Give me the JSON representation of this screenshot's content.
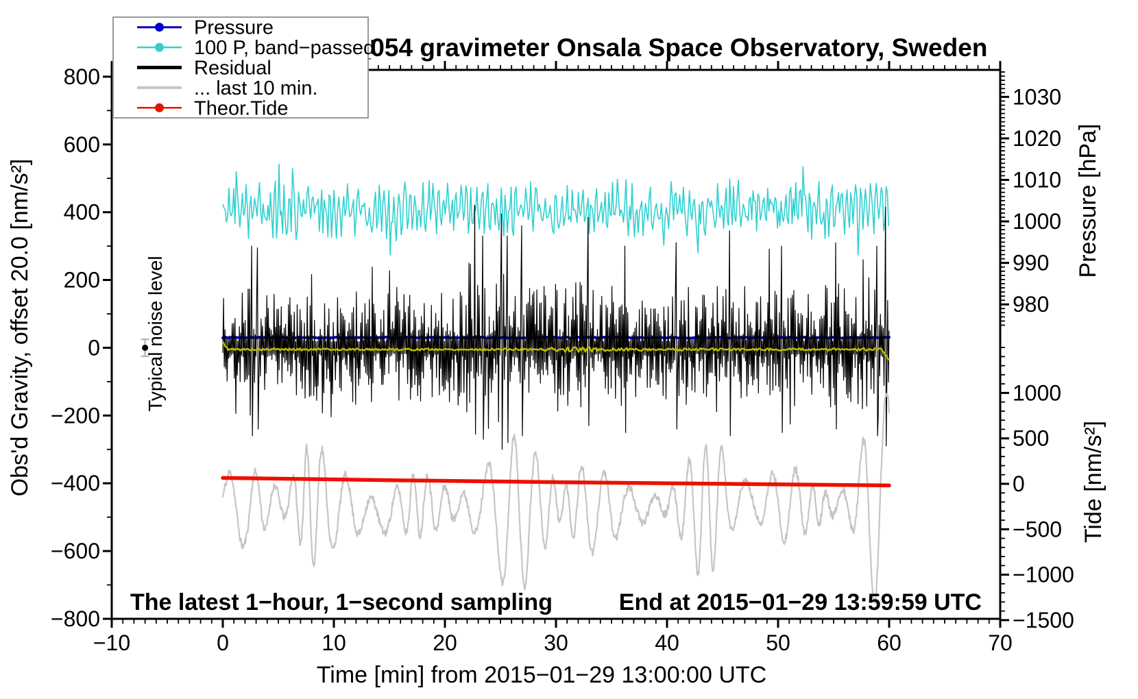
{
  "title": "SCG_054 gravimeter Onsala Space Observatory, Sweden",
  "legend": {
    "items": [
      {
        "label": "Pressure",
        "color": "#0000cc",
        "width": 3,
        "marker": true
      },
      {
        "label": "100 P, band−passed",
        "color": "#30d0d0",
        "width": 2.5,
        "marker": true
      },
      {
        "label": "Residual",
        "color": "#000000",
        "width": 5,
        "marker": false
      },
      {
        "label": "... last 10 min.",
        "color": "#c5c5c5",
        "width": 4,
        "marker": false
      },
      {
        "label": "Theor.Tide",
        "color": "#ec1000",
        "width": 2.5,
        "marker": true
      }
    ]
  },
  "chart_data": {
    "type": "line",
    "title": "SCG_054 gravimeter Onsala Space Observatory, Sweden",
    "xlabel": "Time [min] from 2015−01−29 13:00:00 UTC",
    "x_axis": {
      "range": [
        -10,
        70
      ],
      "major_step": 10,
      "minor_step": 1,
      "tick_labels": [
        -10,
        0,
        10,
        20,
        30,
        40,
        50,
        60,
        70
      ]
    },
    "gravity_axis": {
      "label": "Obs'd Gravity, offset 20.0 [nm/s²]",
      "range": [
        -800,
        820
      ],
      "major_step": 200,
      "minor_step": 100,
      "tick_labels": [
        800,
        600,
        400,
        200,
        0,
        -200,
        -400,
        -600,
        -800
      ]
    },
    "pressure_axis": {
      "label": "Pressure [hPa]",
      "range": [
        975,
        1036.5
      ],
      "minor_step": 1,
      "tick_labels": [
        1030,
        1020,
        1010,
        1000,
        990,
        980
      ]
    },
    "tide_axis": {
      "label": "Tide [nm/s²]",
      "range": [
        -1500,
        1500
      ],
      "minor_step": 100,
      "tick_labels": [
        1000,
        500,
        0,
        -500,
        -1000,
        -1500
      ]
    },
    "annotations": {
      "sampling": "The latest 1−hour, 1−second sampling",
      "end": "End at 2015−01−29 13:59:59 UTC"
    },
    "noise_marker": {
      "t": -7,
      "value": 0,
      "error": 25,
      "label": "Typical noise level"
    },
    "series": [
      {
        "name": "Pressure",
        "type": "flat",
        "axis": "pressure",
        "color": "#0000cc",
        "value": 972,
        "jitter": 0.25,
        "width": 4,
        "step": 0.25,
        "t": [
          0,
          60
        ]
      },
      {
        "name": "100 P, band−passed",
        "type": "band",
        "color": "#30d0d0",
        "center": 405,
        "width": 1.6,
        "step": 0.11,
        "t": [
          0,
          60
        ],
        "env_keys": [
          [
            0,
            75
          ],
          [
            3,
            85
          ],
          [
            5,
            95
          ],
          [
            7,
            80
          ],
          [
            10,
            85
          ],
          [
            13,
            75
          ],
          [
            15,
            90
          ],
          [
            17,
            95
          ],
          [
            20,
            80
          ],
          [
            23,
            85
          ],
          [
            25,
            100
          ],
          [
            27,
            85
          ],
          [
            30,
            70
          ],
          [
            33,
            75
          ],
          [
            36,
            95
          ],
          [
            38,
            80
          ],
          [
            40,
            110
          ],
          [
            42,
            85
          ],
          [
            45,
            90
          ],
          [
            48,
            95
          ],
          [
            50,
            85
          ],
          [
            52,
            90
          ],
          [
            55,
            85
          ],
          [
            57,
            90
          ],
          [
            60,
            95
          ]
        ]
      },
      {
        "name": "Residual",
        "type": "residual",
        "color": "#000000",
        "width": 1.2,
        "step": 0.065,
        "t": [
          0,
          60
        ],
        "env_keys": [
          [
            0,
            150
          ],
          [
            2,
            190
          ],
          [
            3,
            170
          ],
          [
            5,
            160
          ],
          [
            8,
            175
          ],
          [
            10,
            165
          ],
          [
            12,
            180
          ],
          [
            14,
            170
          ],
          [
            16,
            185
          ],
          [
            18,
            170
          ],
          [
            20,
            180
          ],
          [
            22,
            210
          ],
          [
            23,
            230
          ],
          [
            24,
            220
          ],
          [
            25,
            240
          ],
          [
            26,
            230
          ],
          [
            27,
            210
          ],
          [
            28,
            190
          ],
          [
            30,
            200
          ],
          [
            31,
            210
          ],
          [
            32,
            200
          ],
          [
            34,
            185
          ],
          [
            36,
            195
          ],
          [
            38,
            185
          ],
          [
            40,
            190
          ],
          [
            42,
            180
          ],
          [
            44,
            190
          ],
          [
            45,
            200
          ],
          [
            46,
            190
          ],
          [
            48,
            185
          ],
          [
            50,
            195
          ],
          [
            52,
            185
          ],
          [
            54,
            190
          ],
          [
            56,
            195
          ],
          [
            58,
            210
          ],
          [
            59,
            230
          ],
          [
            60,
            240
          ]
        ],
        "spikes": [
          [
            2.6,
            300,
            -260
          ],
          [
            3.1,
            295,
            -240
          ],
          [
            22.7,
            420,
            -255
          ],
          [
            23.4,
            330,
            -270
          ],
          [
            25.1,
            395,
            -300
          ],
          [
            25.6,
            330,
            -280
          ],
          [
            26.9,
            360,
            -260
          ],
          [
            32.9,
            385,
            -230
          ],
          [
            36.2,
            300,
            -250
          ],
          [
            40.8,
            310,
            -240
          ],
          [
            45.6,
            345,
            -260
          ],
          [
            50.3,
            300,
            -250
          ],
          [
            55.2,
            310,
            -240
          ],
          [
            58.9,
            300,
            -260
          ],
          [
            59.7,
            415,
            -290
          ]
        ]
      },
      {
        "name": "Residual last 10 min",
        "type": "swell",
        "color": "#c5c5c5",
        "width": 2.2,
        "step": 0.05,
        "t": [
          0,
          60
        ],
        "period": 1.9,
        "keys": [
          [
            0,
            -455,
            120
          ],
          [
            0.4,
            -520,
            150
          ],
          [
            2,
            -470,
            120
          ],
          [
            4,
            -460,
            170
          ],
          [
            6,
            -450,
            200
          ],
          [
            8,
            -460,
            190
          ],
          [
            10,
            -470,
            150
          ],
          [
            12,
            -480,
            190
          ],
          [
            14,
            -500,
            220
          ],
          [
            16,
            -470,
            110
          ],
          [
            18,
            -460,
            90
          ],
          [
            20,
            -465,
            120
          ],
          [
            22,
            -470,
            170
          ],
          [
            24,
            -480,
            230
          ],
          [
            26,
            -500,
            250
          ],
          [
            27,
            -490,
            230
          ],
          [
            28,
            -470,
            190
          ],
          [
            30,
            -460,
            220
          ],
          [
            32,
            -470,
            180
          ],
          [
            34,
            -480,
            120
          ],
          [
            36,
            -475,
            80
          ],
          [
            38,
            -470,
            100
          ],
          [
            40,
            -460,
            130
          ],
          [
            42,
            -470,
            170
          ],
          [
            43.5,
            -490,
            210
          ],
          [
            45,
            -440,
            250
          ],
          [
            46.5,
            -450,
            260
          ],
          [
            48,
            -460,
            210
          ],
          [
            50,
            -455,
            180
          ],
          [
            51.5,
            -465,
            120
          ],
          [
            53,
            -470,
            60
          ],
          [
            54.5,
            -465,
            90
          ],
          [
            56,
            -460,
            180
          ],
          [
            57.5,
            -450,
            300
          ],
          [
            58.5,
            -450,
            375
          ],
          [
            59.3,
            -445,
            380
          ],
          [
            60,
            -450,
            300
          ]
        ]
      },
      {
        "name": "Theor.Tide",
        "type": "path",
        "axis": "tide",
        "color": "#ec1000",
        "width": 5.5,
        "points": [
          [
            0,
            65
          ],
          [
            15,
            40
          ],
          [
            30,
            18
          ],
          [
            45,
            0
          ],
          [
            60,
            -18
          ]
        ]
      },
      {
        "name": "yellow-lowpass",
        "type": "yellow",
        "color": "#bcbc00",
        "center": -5,
        "width": 2.5,
        "step": 0.12,
        "t": [
          0,
          60
        ],
        "wiggle_keys": [
          [
            0,
            4
          ],
          [
            28,
            4
          ],
          [
            31,
            9
          ],
          [
            34,
            10
          ],
          [
            37,
            5
          ],
          [
            50,
            4
          ],
          [
            57,
            5
          ],
          [
            60,
            7
          ]
        ]
      }
    ]
  }
}
